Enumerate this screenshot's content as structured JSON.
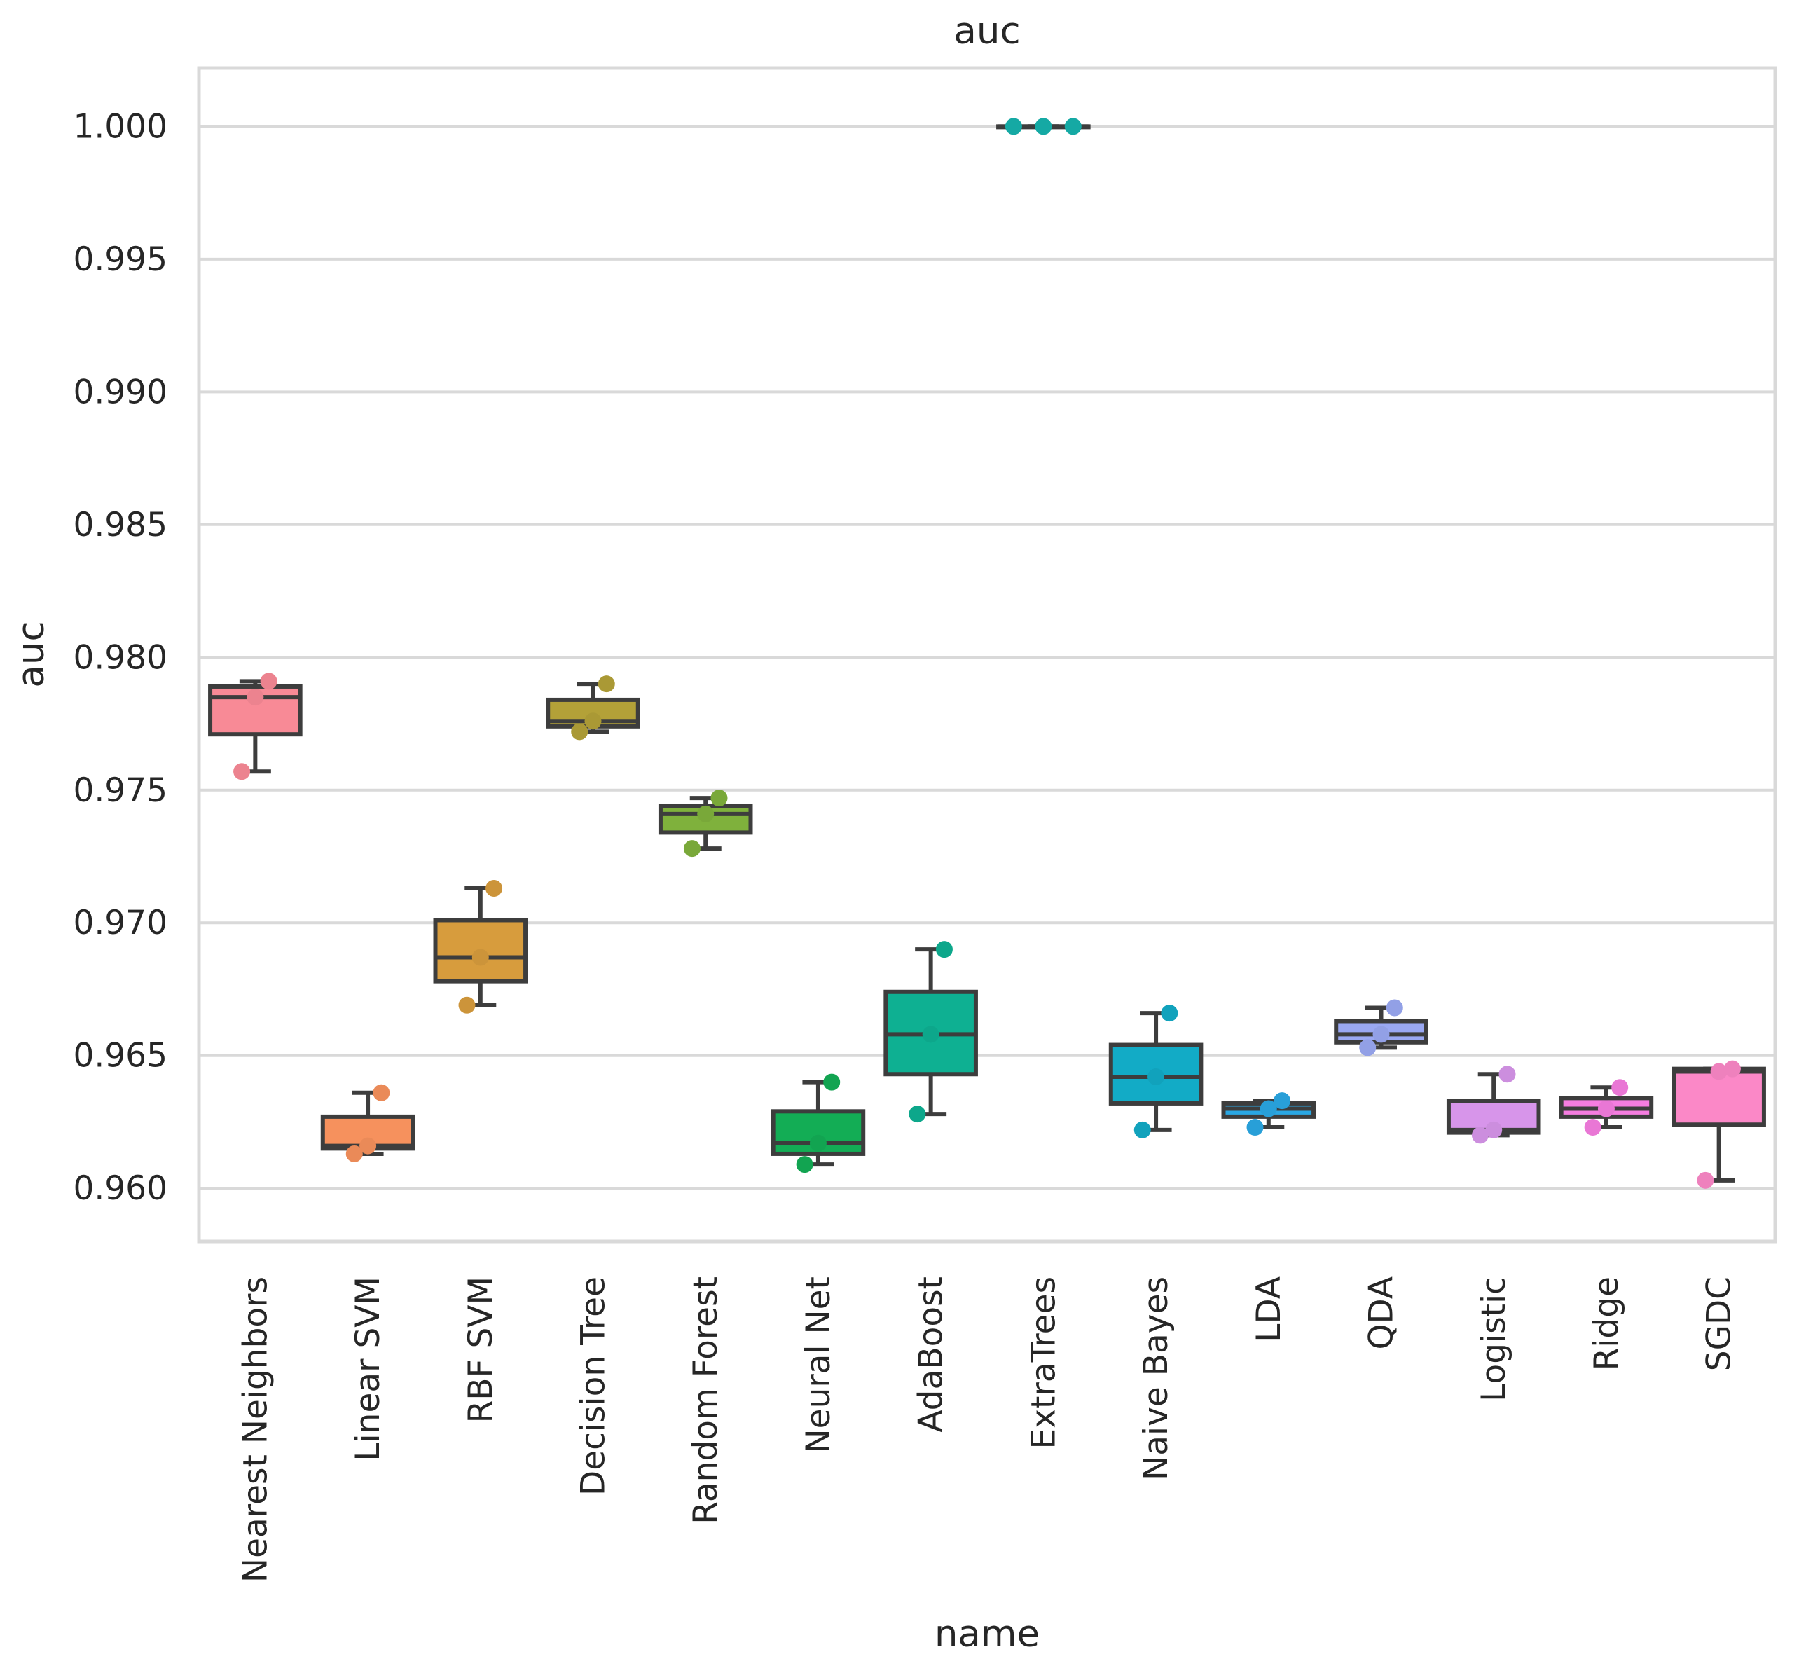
{
  "chart_data": {
    "type": "box",
    "title": "auc",
    "xlabel": "name",
    "ylabel": "auc",
    "ylim": [
      0.958,
      1.0022
    ],
    "yticks": [
      "0.960",
      "0.965",
      "0.970",
      "0.975",
      "0.980",
      "0.985",
      "0.990",
      "0.995",
      "1.000"
    ],
    "ytick_values": [
      0.96,
      0.965,
      0.97,
      0.975,
      0.98,
      0.985,
      0.99,
      0.995,
      1.0
    ],
    "grid": true,
    "categories": [
      {
        "name": "Nearest Neighbors",
        "color": "#f88a96",
        "whisker_low": 0.9757,
        "q1": 0.9771,
        "median": 0.9785,
        "q3": 0.9789,
        "whisker_high": 0.9791,
        "points": [
          0.9757,
          0.9785,
          0.9791
        ]
      },
      {
        "name": "Linear SVM",
        "color": "#f6915d",
        "whisker_low": 0.9613,
        "q1": 0.9615,
        "median": 0.9616,
        "q3": 0.9627,
        "whisker_high": 0.9636,
        "points": [
          0.9613,
          0.9616,
          0.9636
        ]
      },
      {
        "name": "RBF SVM",
        "color": "#d79c3d",
        "whisker_low": 0.9669,
        "q1": 0.9678,
        "median": 0.9687,
        "q3": 0.9701,
        "whisker_high": 0.9713,
        "points": [
          0.9669,
          0.9687,
          0.9713
        ]
      },
      {
        "name": "Decision Tree",
        "color": "#b3a138",
        "whisker_low": 0.9772,
        "q1": 0.9774,
        "median": 0.9776,
        "q3": 0.9784,
        "whisker_high": 0.979,
        "points": [
          0.9772,
          0.9776,
          0.979
        ]
      },
      {
        "name": "Random Forest",
        "color": "#7fb13c",
        "whisker_low": 0.9728,
        "q1": 0.9734,
        "median": 0.9741,
        "q3": 0.9744,
        "whisker_high": 0.9747,
        "points": [
          0.9728,
          0.9741,
          0.9747
        ]
      },
      {
        "name": "Neural Net",
        "color": "#13ad55",
        "whisker_low": 0.9609,
        "q1": 0.9613,
        "median": 0.9617,
        "q3": 0.9629,
        "whisker_high": 0.964,
        "points": [
          0.9609,
          0.9617,
          0.964
        ]
      },
      {
        "name": "AdaBoost",
        "color": "#0eb092",
        "whisker_low": 0.9628,
        "q1": 0.9643,
        "median": 0.9658,
        "q3": 0.9674,
        "whisker_high": 0.969,
        "points": [
          0.9628,
          0.9658,
          0.969
        ]
      },
      {
        "name": "ExtraTrees",
        "color": "#16b2ad",
        "whisker_low": 1.0,
        "q1": 1.0,
        "median": 1.0,
        "q3": 1.0,
        "whisker_high": 1.0,
        "points": [
          1.0,
          1.0,
          1.0
        ]
      },
      {
        "name": "Naive Bayes",
        "color": "#12abc6",
        "whisker_low": 0.9622,
        "q1": 0.9632,
        "median": 0.9642,
        "q3": 0.9654,
        "whisker_high": 0.9666,
        "points": [
          0.9622,
          0.9642,
          0.9666
        ]
      },
      {
        "name": "LDA",
        "color": "#2aa7e3",
        "whisker_low": 0.9623,
        "q1": 0.9627,
        "median": 0.963,
        "q3": 0.9632,
        "whisker_high": 0.9633,
        "points": [
          0.9623,
          0.963,
          0.9633
        ]
      },
      {
        "name": "QDA",
        "color": "#9aa8f2",
        "whisker_low": 0.9653,
        "q1": 0.9655,
        "median": 0.9658,
        "q3": 0.9663,
        "whisker_high": 0.9668,
        "points": [
          0.9653,
          0.9658,
          0.9668
        ]
      },
      {
        "name": "Logistic",
        "color": "#d795ea",
        "whisker_low": 0.962,
        "q1": 0.9621,
        "median": 0.9622,
        "q3": 0.9633,
        "whisker_high": 0.9643,
        "points": [
          0.962,
          0.9622,
          0.9643
        ]
      },
      {
        "name": "Ridge",
        "color": "#f57de0",
        "whisker_low": 0.9623,
        "q1": 0.9627,
        "median": 0.963,
        "q3": 0.9634,
        "whisker_high": 0.9638,
        "points": [
          0.9623,
          0.963,
          0.9638
        ]
      },
      {
        "name": "SGDC",
        "color": "#fb88c7",
        "whisker_low": 0.9603,
        "q1": 0.9624,
        "median": 0.9644,
        "q3": 0.9645,
        "whisker_high": 0.9645,
        "points": [
          0.9603,
          0.9644,
          0.9645
        ]
      }
    ]
  }
}
